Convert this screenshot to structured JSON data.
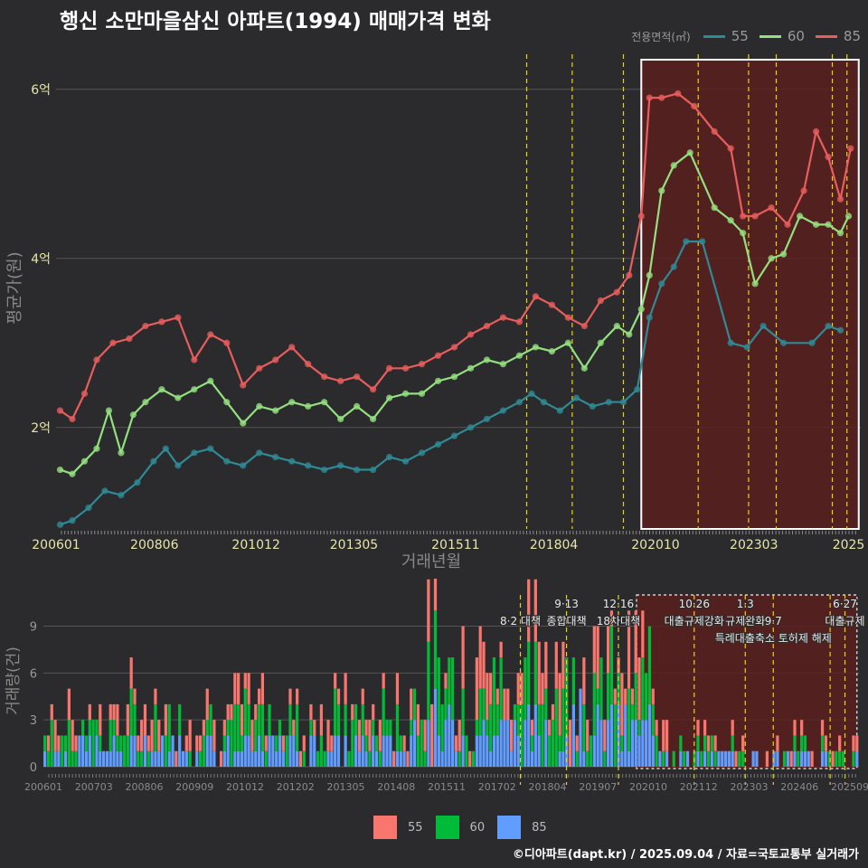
{
  "title": "행신 소만마을삼신 아파트(1994) 매매가격 변화",
  "credit": "©디아파트(dapt.kr) / 2025.09.04 / 자료=국토교통부 실거래가",
  "legend_title": "전용면적(㎡)",
  "colors": {
    "background": "#2b2b2d",
    "s55": "#2e8a94",
    "s60": "#93e07f",
    "s85": "#e85d5d",
    "bar55": "#f8766d",
    "bar60": "#00ba38",
    "bar85": "#619cff",
    "highlight": "#5a1e1e",
    "vline": "#e8d21a"
  },
  "chart_data": [
    {
      "type": "line",
      "title": "행신 소만마을삼신 아파트(1994) 매매가격 변화",
      "xlabel": "거래년월",
      "ylabel": "평균가(원)",
      "x_range": [
        2006.0,
        2025.8
      ],
      "ylim": [
        0.8,
        6.5
      ],
      "x_tick_labels": [
        "200601",
        "200806",
        "201012",
        "201305",
        "201511",
        "201804",
        "202010",
        "202303",
        "2025"
      ],
      "x_ticks": [
        2006.0,
        2008.42,
        2010.92,
        2013.33,
        2015.83,
        2018.25,
        2020.75,
        2023.17,
        2025.5
      ],
      "y_ticks": [
        2,
        4,
        6
      ],
      "y_tick_labels": [
        "2억",
        "4억",
        "6억"
      ],
      "grid": true,
      "legend_position": "top-right",
      "highlight_x": [
        2020.4,
        2025.75
      ],
      "highlight_y": [
        0.8,
        6.35
      ],
      "event_lines_x": [
        2017.58,
        2018.7,
        2019.96,
        2021.8,
        2023.04,
        2023.72,
        2025.1,
        2025.46
      ],
      "series": [
        {
          "name": "55",
          "x": [
            2006.1,
            2006.4,
            2006.8,
            2007.2,
            2007.6,
            2008.0,
            2008.4,
            2008.7,
            2009.0,
            2009.4,
            2009.8,
            2010.2,
            2010.6,
            2011.0,
            2011.4,
            2011.8,
            2012.2,
            2012.6,
            2013.0,
            2013.4,
            2013.8,
            2014.2,
            2014.6,
            2015.0,
            2015.4,
            2015.8,
            2016.2,
            2016.6,
            2017.0,
            2017.4,
            2017.7,
            2018.0,
            2018.4,
            2018.8,
            2019.2,
            2019.6,
            2019.96,
            2020.3,
            2020.6,
            2020.9,
            2021.2,
            2021.5,
            2021.9,
            2022.6,
            2023.0,
            2023.4,
            2023.9,
            2024.6,
            2025.0,
            2025.3
          ],
          "y": [
            0.85,
            0.9,
            1.05,
            1.25,
            1.2,
            1.35,
            1.6,
            1.75,
            1.55,
            1.7,
            1.75,
            1.6,
            1.55,
            1.7,
            1.65,
            1.6,
            1.55,
            1.5,
            1.55,
            1.5,
            1.5,
            1.65,
            1.6,
            1.7,
            1.8,
            1.9,
            2.0,
            2.1,
            2.2,
            2.3,
            2.4,
            2.3,
            2.2,
            2.35,
            2.25,
            2.3,
            2.3,
            2.45,
            3.3,
            3.7,
            3.9,
            4.2,
            4.2,
            3.0,
            2.95,
            3.2,
            3.0,
            3.0,
            3.2,
            3.15
          ]
        },
        {
          "name": "60",
          "x": [
            2006.1,
            2006.4,
            2006.7,
            2007.0,
            2007.3,
            2007.6,
            2007.9,
            2008.2,
            2008.6,
            2009.0,
            2009.4,
            2009.8,
            2010.2,
            2010.6,
            2011.0,
            2011.4,
            2011.8,
            2012.2,
            2012.6,
            2013.0,
            2013.4,
            2013.8,
            2014.2,
            2014.6,
            2015.0,
            2015.4,
            2015.8,
            2016.2,
            2016.6,
            2017.0,
            2017.4,
            2017.8,
            2018.2,
            2018.6,
            2019.0,
            2019.4,
            2019.8,
            2020.1,
            2020.4,
            2020.6,
            2020.9,
            2021.2,
            2021.6,
            2022.2,
            2022.6,
            2022.9,
            2023.2,
            2023.6,
            2023.9,
            2024.3,
            2024.7,
            2025.0,
            2025.3,
            2025.5
          ],
          "y": [
            1.5,
            1.45,
            1.6,
            1.75,
            2.2,
            1.7,
            2.15,
            2.3,
            2.45,
            2.35,
            2.45,
            2.55,
            2.3,
            2.05,
            2.25,
            2.2,
            2.3,
            2.25,
            2.3,
            2.1,
            2.25,
            2.1,
            2.35,
            2.4,
            2.4,
            2.55,
            2.6,
            2.7,
            2.8,
            2.75,
            2.85,
            2.95,
            2.9,
            3.0,
            2.7,
            3.0,
            3.2,
            3.1,
            3.4,
            3.8,
            4.8,
            5.1,
            5.25,
            4.6,
            4.45,
            4.3,
            3.7,
            4.0,
            4.05,
            4.5,
            4.4,
            4.4,
            4.3,
            4.5
          ]
        },
        {
          "name": "85",
          "x": [
            2006.1,
            2006.4,
            2006.7,
            2007.0,
            2007.4,
            2007.8,
            2008.2,
            2008.6,
            2009.0,
            2009.4,
            2009.8,
            2010.2,
            2010.6,
            2011.0,
            2011.4,
            2011.8,
            2012.2,
            2012.6,
            2013.0,
            2013.4,
            2013.8,
            2014.2,
            2014.6,
            2015.0,
            2015.4,
            2015.8,
            2016.2,
            2016.6,
            2017.0,
            2017.4,
            2017.8,
            2018.2,
            2018.6,
            2019.0,
            2019.4,
            2019.8,
            2020.1,
            2020.4,
            2020.6,
            2020.9,
            2021.3,
            2021.7,
            2022.2,
            2022.6,
            2022.9,
            2023.2,
            2023.6,
            2024.0,
            2024.4,
            2024.7,
            2025.0,
            2025.3,
            2025.55
          ],
          "y": [
            2.2,
            2.1,
            2.4,
            2.8,
            3.0,
            3.05,
            3.2,
            3.25,
            3.3,
            2.8,
            3.1,
            3.0,
            2.5,
            2.7,
            2.8,
            2.95,
            2.75,
            2.6,
            2.55,
            2.6,
            2.45,
            2.7,
            2.7,
            2.75,
            2.85,
            2.95,
            3.1,
            3.2,
            3.3,
            3.25,
            3.55,
            3.45,
            3.3,
            3.2,
            3.5,
            3.6,
            3.8,
            4.5,
            5.9,
            5.9,
            5.95,
            5.8,
            5.5,
            5.3,
            4.5,
            4.5,
            4.6,
            4.4,
            4.8,
            5.5,
            5.2,
            4.7,
            5.3
          ]
        }
      ]
    },
    {
      "type": "bar",
      "ylabel": "거래량(건)",
      "x_range": [
        2006.0,
        2025.8
      ],
      "ylim": [
        0,
        11
      ],
      "y_ticks": [
        0,
        3,
        6,
        9
      ],
      "x_tick_labels": [
        "200601",
        "200703",
        "200806",
        "200909",
        "201012",
        "201202",
        "201305",
        "201408",
        "201511",
        "201702",
        "201804",
        "201907",
        "202010",
        "202112",
        "202303",
        "202406",
        "202509"
      ],
      "highlight_x": [
        2020.4,
        2025.75
      ],
      "event_lines_x": [
        2017.58,
        2018.7,
        2019.96,
        2021.8,
        2023.04,
        2023.72,
        2025.1,
        2025.46
      ],
      "annotations": [
        {
          "x": 2017.58,
          "row": 1,
          "text": "8·2 대책"
        },
        {
          "x": 2018.7,
          "row": 0,
          "text": "9·13"
        },
        {
          "x": 2018.7,
          "row": 1,
          "text": "종합대책"
        },
        {
          "x": 2019.96,
          "row": 0,
          "text": "12·16"
        },
        {
          "x": 2019.96,
          "row": 1,
          "text": "18차대책"
        },
        {
          "x": 2021.8,
          "row": 0,
          "text": "10·26"
        },
        {
          "x": 2021.8,
          "row": 1,
          "text": "대출규제강화"
        },
        {
          "x": 2023.04,
          "row": 0,
          "text": "1·3"
        },
        {
          "x": 2023.04,
          "row": 1,
          "text": "규제완화"
        },
        {
          "x": 2023.72,
          "row": 1,
          "text": "9·7"
        },
        {
          "x": 2023.72,
          "row": 2,
          "text": "특례대출축소 토허제 해제"
        },
        {
          "x": 2025.46,
          "row": 0,
          "text": "6·27"
        },
        {
          "x": 2025.46,
          "row": 1,
          "text": "대출규제"
        }
      ],
      "series_names": [
        "55",
        "60",
        "85"
      ]
    }
  ]
}
